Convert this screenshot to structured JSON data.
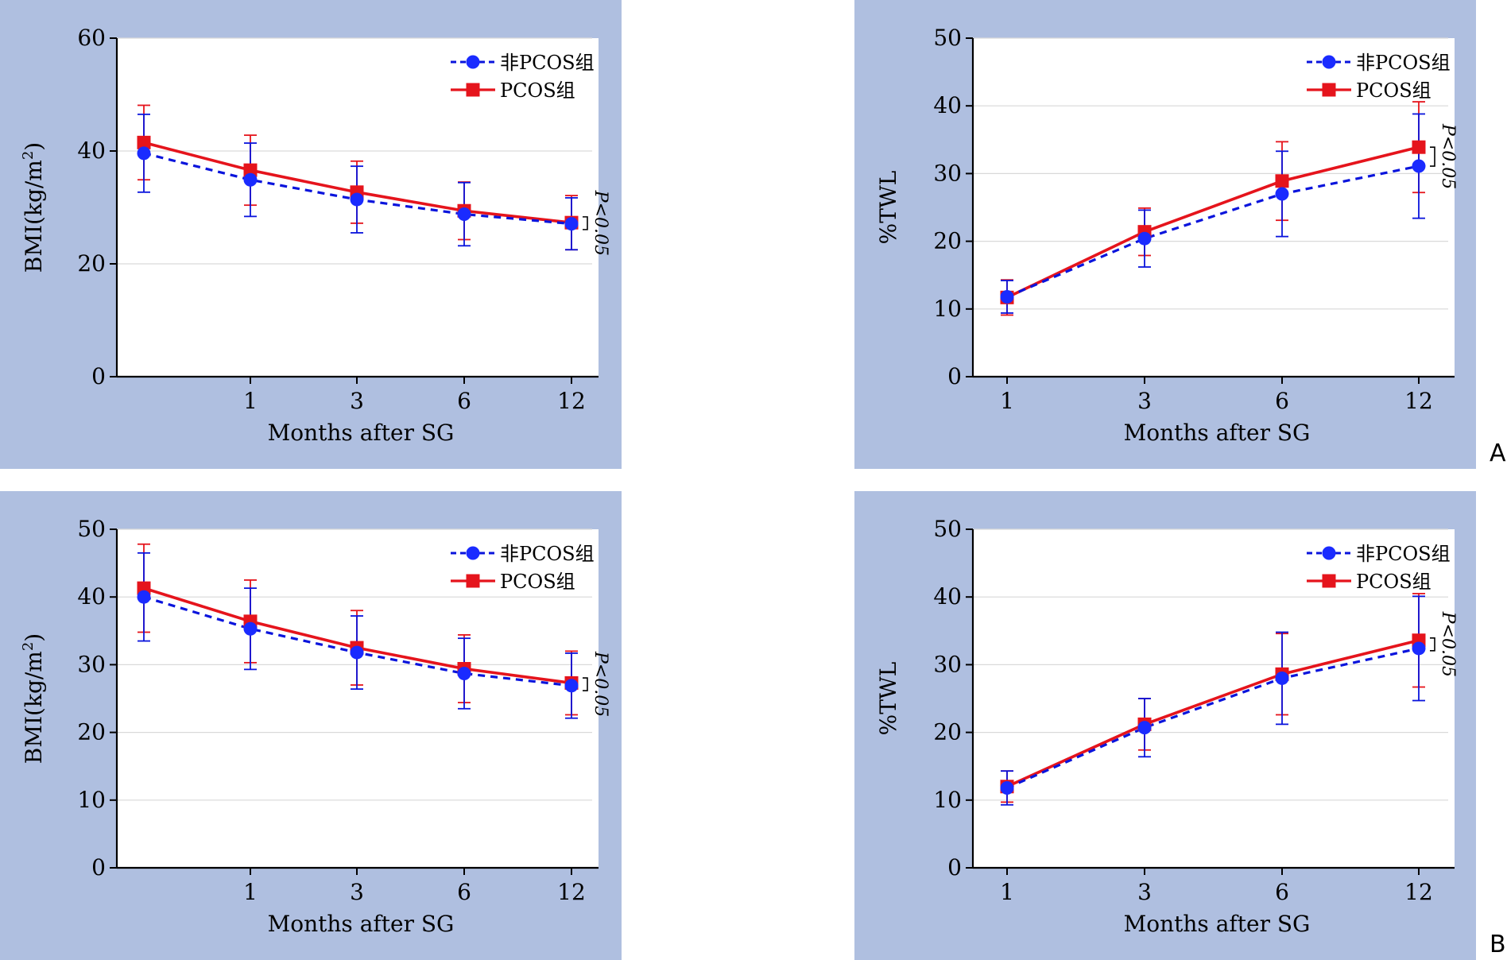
{
  "colors": {
    "panel_bg": "#afbfe0",
    "plot_bg": "#ffffff",
    "non_pcos": "#0a14dc",
    "non_pcos_marker": "#1a2bff",
    "pcos": "#e5141c",
    "grid": "#d9d9d9",
    "axis": "#000000"
  },
  "panel_labels": [
    "A",
    "B"
  ],
  "chart_data": [
    {
      "id": "A-left",
      "type": "line",
      "ylabel": "BMI(kg/m²)",
      "ylabel_main": "BMI(kg/m",
      "ylabel_sup": "2",
      "ylabel_close": ")",
      "xlabel": "Months after SG",
      "ylim": [
        0,
        60
      ],
      "yticks": [
        0,
        20,
        40,
        60
      ],
      "categories": [
        "0",
        "1",
        "3",
        "6",
        "12"
      ],
      "xtick_labels": [
        "",
        "1",
        "3",
        "6",
        "12"
      ],
      "grid": true,
      "legend": "top-right",
      "annotation": "P<0.05",
      "annotation_between": [
        27.1,
        27.3
      ],
      "series": [
        {
          "name": "非PCOS组",
          "style": "dashed",
          "marker": "circle",
          "values": [
            39.6,
            34.9,
            31.4,
            28.8,
            27.1
          ],
          "errors": [
            6.9,
            6.5,
            5.9,
            5.6,
            4.6
          ]
        },
        {
          "name": "PCOS组",
          "style": "solid",
          "marker": "square",
          "values": [
            41.5,
            36.6,
            32.7,
            29.4,
            27.3
          ],
          "errors": [
            6.6,
            6.2,
            5.5,
            5.1,
            4.8
          ]
        }
      ]
    },
    {
      "id": "A-right",
      "type": "line",
      "ylabel": "%TWL",
      "xlabel": "Months after SG",
      "ylim": [
        0,
        50
      ],
      "yticks": [
        0,
        10,
        20,
        30,
        40,
        50
      ],
      "categories": [
        "1",
        "3",
        "6",
        "12"
      ],
      "xtick_labels": [
        "1",
        "3",
        "6",
        "12"
      ],
      "grid": true,
      "legend": "top-right",
      "annotation": "P<0.05",
      "annotation_between": [
        31.1,
        33.9
      ],
      "series": [
        {
          "name": "非PCOS组",
          "style": "dashed",
          "marker": "circle",
          "values": [
            11.8,
            20.4,
            27.0,
            31.1
          ],
          "errors": [
            2.4,
            4.2,
            6.3,
            7.7
          ]
        },
        {
          "name": "PCOS组",
          "style": "solid",
          "marker": "square",
          "values": [
            11.7,
            21.4,
            28.9,
            33.9
          ],
          "errors": [
            2.6,
            3.5,
            5.8,
            6.7
          ]
        }
      ]
    },
    {
      "id": "B-left",
      "type": "line",
      "ylabel": "BMI(kg/m²)",
      "ylabel_main": "BMI(kg/m",
      "ylabel_sup": "2",
      "ylabel_close": ")",
      "xlabel": "Months after SG",
      "ylim": [
        0,
        50
      ],
      "yticks": [
        0,
        10,
        20,
        30,
        40,
        50
      ],
      "categories": [
        "0",
        "1",
        "3",
        "6",
        "12"
      ],
      "xtick_labels": [
        "",
        "1",
        "3",
        "6",
        "12"
      ],
      "grid": true,
      "legend": "top-right",
      "annotation": "P<0.05",
      "annotation_between": [
        26.9,
        27.3
      ],
      "series": [
        {
          "name": "非PCOS组",
          "style": "dashed",
          "marker": "circle",
          "values": [
            40.0,
            35.3,
            31.8,
            28.7,
            26.9
          ],
          "errors": [
            6.5,
            6.0,
            5.4,
            5.2,
            4.8
          ]
        },
        {
          "name": "PCOS组",
          "style": "solid",
          "marker": "square",
          "values": [
            41.3,
            36.4,
            32.5,
            29.4,
            27.3
          ],
          "errors": [
            6.5,
            6.1,
            5.5,
            5.0,
            4.7
          ]
        }
      ]
    },
    {
      "id": "B-right",
      "type": "line",
      "ylabel": "%TWL",
      "xlabel": "Months after SG",
      "ylim": [
        0,
        50
      ],
      "yticks": [
        0,
        10,
        20,
        30,
        40,
        50
      ],
      "categories": [
        "1",
        "3",
        "6",
        "12"
      ],
      "xtick_labels": [
        "1",
        "3",
        "6",
        "12"
      ],
      "grid": true,
      "legend": "top-right",
      "annotation": "P<0.05",
      "annotation_between": [
        32.4,
        33.6
      ],
      "series": [
        {
          "name": "非PCOS组",
          "style": "dashed",
          "marker": "circle",
          "values": [
            11.8,
            20.7,
            28.0,
            32.4
          ],
          "errors": [
            2.5,
            4.3,
            6.8,
            7.7
          ]
        },
        {
          "name": "PCOS组",
          "style": "solid",
          "marker": "square",
          "values": [
            12.0,
            21.2,
            28.6,
            33.6
          ],
          "errors": [
            2.3,
            3.8,
            6.0,
            6.9
          ]
        }
      ]
    }
  ]
}
